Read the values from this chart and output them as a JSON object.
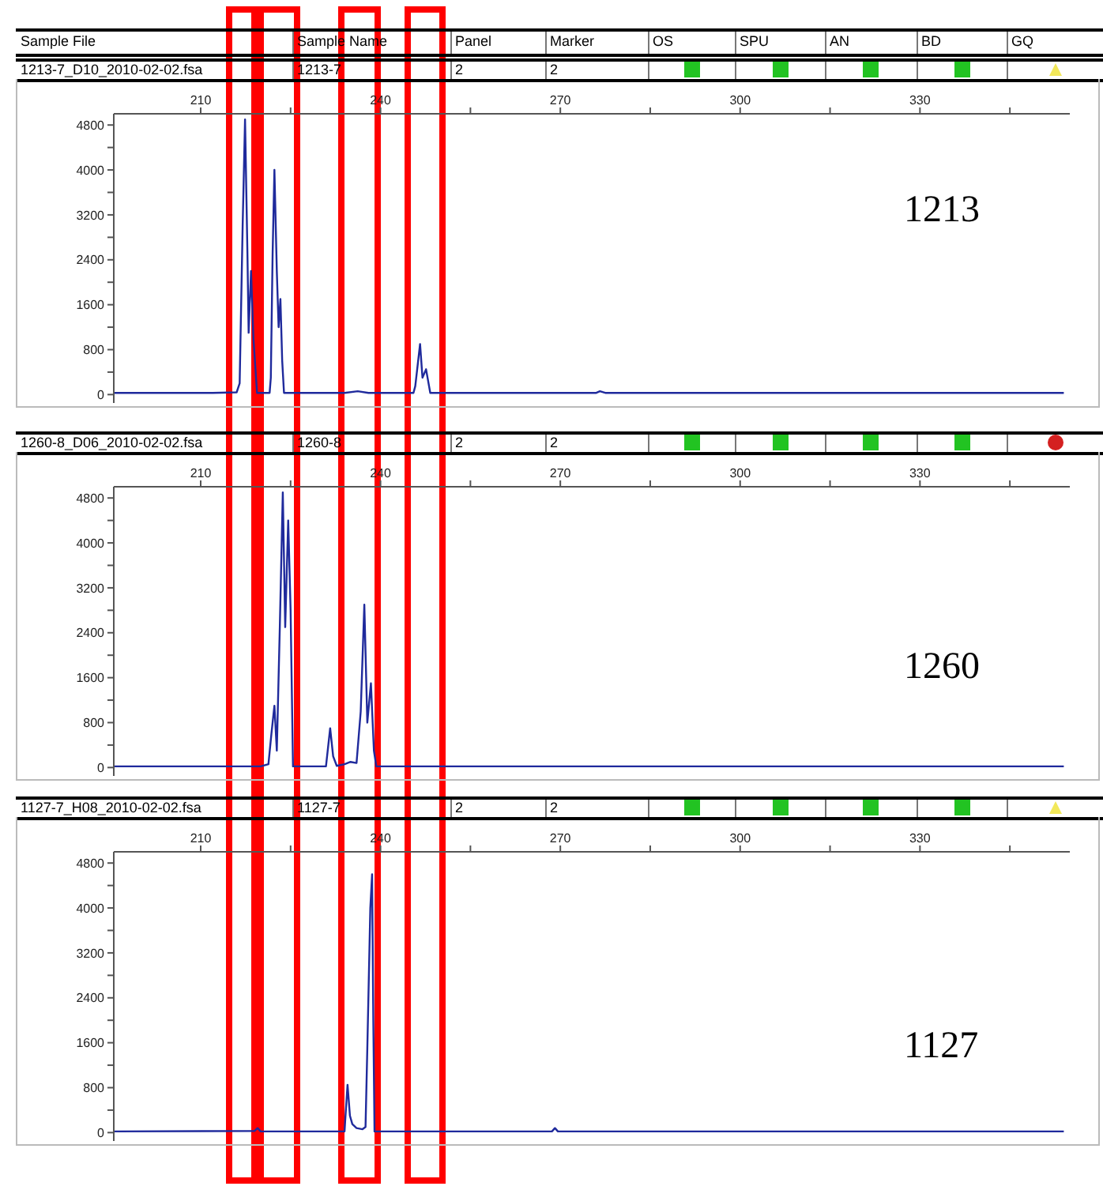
{
  "chart_data": [
    {
      "type": "other",
      "categories": [
        "Sample File",
        "Sample Name",
        "Panel",
        "Marker",
        "OS",
        "SPU",
        "AN",
        "BD",
        "GQ"
      ]
    },
    {
      "type": "line",
      "title": "1213-7_D10_2010-02-02.fsa",
      "annotations": [
        "1213-7",
        "2",
        "2",
        "1213"
      ],
      "xlim": [
        195.5,
        355
      ],
      "xticks": [
        210,
        {
          "value": 225,
          "label": null
        },
        240,
        {
          "value": 255,
          "label": null
        },
        270,
        {
          "value": 285,
          "label": null
        },
        300,
        {
          "value": 315,
          "label": null
        },
        330,
        {
          "value": 345,
          "label": null
        }
      ],
      "ylim": [
        -150,
        5000
      ],
      "yticks": [
        0,
        {
          "value": 400,
          "label": null
        },
        800,
        {
          "value": 1200,
          "label": null
        },
        1600,
        {
          "value": 2000,
          "label": null
        },
        2400,
        {
          "value": 2800,
          "label": null
        },
        3200,
        {
          "value": 3600,
          "label": null
        },
        4000,
        {
          "value": 4400,
          "label": null
        },
        4800
      ],
      "series": [
        {
          "color": "#1f2a9c",
          "x": [
            195.5,
            205,
            212,
            216,
            216.5,
            217,
            217.4,
            217.8,
            218,
            218.4,
            218.8,
            219.4,
            221.5,
            221.7,
            222,
            222.3,
            222.7,
            223,
            223.3,
            223.6,
            223.9,
            234,
            236.2,
            238,
            245.5,
            245.8,
            246.6,
            247,
            247.6,
            248.3,
            276,
            276.6,
            277.5,
            354
          ],
          "values": [
            30,
            30,
            30,
            40,
            200,
            3000,
            4900,
            2500,
            1100,
            2200,
            1000,
            30,
            30,
            300,
            2500,
            4000,
            2200,
            1200,
            1700,
            600,
            30,
            30,
            60,
            30,
            30,
            150,
            900,
            300,
            450,
            30,
            30,
            60,
            30,
            30
          ]
        }
      ]
    },
    {
      "type": "line",
      "title": "1260-8_D06_2010-02-02.fsa",
      "annotations": [
        "1260-8",
        "2",
        "2",
        "1260"
      ],
      "xlim": [
        195.5,
        355
      ],
      "xticks": [
        210,
        {
          "value": 225,
          "label": null
        },
        240,
        {
          "value": 255,
          "label": null
        },
        270,
        {
          "value": 285,
          "label": null
        },
        300,
        {
          "value": 315,
          "label": null
        },
        330,
        {
          "value": 345,
          "label": null
        }
      ],
      "ylim": [
        -150,
        5000
      ],
      "yticks": [
        0,
        {
          "value": 400,
          "label": null
        },
        800,
        {
          "value": 1200,
          "label": null
        },
        1600,
        {
          "value": 2000,
          "label": null
        },
        2400,
        {
          "value": 2800,
          "label": null
        },
        3200,
        {
          "value": 3600,
          "label": null
        },
        4000,
        {
          "value": 4400,
          "label": null
        },
        4800
      ],
      "series": [
        {
          "color": "#1f2a9c",
          "x": [
            195.5,
            220,
            221.3,
            221.8,
            222.3,
            222.7,
            223.2,
            223.7,
            224.1,
            224.6,
            225,
            225.4,
            230.9,
            231.6,
            232.1,
            232.7,
            234,
            235,
            236,
            236.7,
            237.3,
            237.8,
            238.4,
            238.9,
            239.3,
            354
          ],
          "values": [
            20,
            20,
            60,
            600,
            1100,
            300,
            2500,
            4900,
            2500,
            4400,
            2800,
            20,
            20,
            700,
            200,
            30,
            60,
            100,
            80,
            1000,
            2900,
            800,
            1500,
            300,
            20,
            20
          ]
        }
      ]
    },
    {
      "type": "line",
      "title": "1127-7_H08_2010-02-02.fsa",
      "annotations": [
        "1127-7",
        "2",
        "2",
        "1127"
      ],
      "xlim": [
        195.5,
        355
      ],
      "xticks": [
        210,
        {
          "value": 225,
          "label": null
        },
        240,
        {
          "value": 255,
          "label": null
        },
        270,
        {
          "value": 285,
          "label": null
        },
        300,
        {
          "value": 315,
          "label": null
        },
        330,
        {
          "value": 345,
          "label": null
        }
      ],
      "ylim": [
        -150,
        5000
      ],
      "yticks": [
        0,
        {
          "value": 400,
          "label": null
        },
        800,
        {
          "value": 1200,
          "label": null
        },
        1600,
        {
          "value": 2000,
          "label": null
        },
        2400,
        {
          "value": 2800,
          "label": null
        },
        3200,
        {
          "value": 3600,
          "label": null
        },
        4000,
        {
          "value": 4400,
          "label": null
        },
        4800
      ],
      "series": [
        {
          "color": "#1f2a9c",
          "x": [
            195.5,
            219,
            219.5,
            220,
            234,
            234.1,
            234.5,
            234.9,
            235.3,
            236,
            237,
            237.5,
            237.8,
            238.3,
            238.6,
            238.8,
            239,
            268.6,
            269.1,
            269.6,
            354
          ],
          "values": [
            20,
            30,
            80,
            20,
            20,
            200,
            850,
            300,
            150,
            80,
            60,
            100,
            1500,
            4000,
            4600,
            2000,
            20,
            20,
            80,
            20,
            20
          ]
        }
      ]
    }
  ]
}
